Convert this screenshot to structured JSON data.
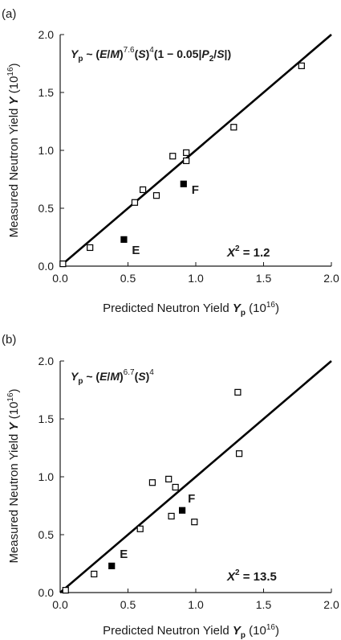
{
  "figure": {
    "colors": {
      "axis": "#1a1a1a",
      "fit_line": "#000000",
      "open_marker": "#ffffff",
      "filled_marker": "#000000"
    }
  },
  "chart_data": [
    {
      "type": "scatter",
      "panel_label": "(a)",
      "formula": {
        "lhs_symbol": "Y",
        "lhs_sub": "p",
        "p1": " ~ (",
        "E": "E",
        "slash1": "/",
        "M": "M",
        "p2": ")",
        "exp1": "7.6",
        "p3": "(",
        "S1": "S",
        "p4": ")",
        "exp2": "4",
        "p5": "(1 − 0.05|",
        "P": "P",
        "P_sub": "2",
        "slash2": "/",
        "S2": "S",
        "p6": "|)"
      },
      "chi_squared": {
        "symbol": "X",
        "exp": "2",
        "text": " = 1.2"
      },
      "xlabel": {
        "main": "Predicted Neutron Yield ",
        "symbol": "Y",
        "sub": "p",
        "unit_pre": " (10",
        "unit_exp": "16",
        "unit_post": ")"
      },
      "ylabel": {
        "main": "Measured Neutron Yield ",
        "symbol": "Y",
        "unit_pre": " (10",
        "unit_exp": "16",
        "unit_post": ")"
      },
      "xlim": [
        0,
        2.0
      ],
      "ylim": [
        0,
        2.0
      ],
      "xticks": [
        "0.0",
        "0.5",
        "1.0",
        "1.5",
        "2.0"
      ],
      "yticks": [
        "0.0",
        "0.5",
        "1.0",
        "1.5",
        "2.0"
      ],
      "grid": false,
      "fit_line": {
        "x": [
          0.0,
          2.0
        ],
        "y": [
          0.0,
          2.0
        ]
      },
      "series": [
        {
          "marker": "open-square",
          "x": [
            0.02,
            0.22,
            0.55,
            0.61,
            0.71,
            0.83,
            0.93,
            0.93,
            1.28,
            1.78
          ],
          "y": [
            0.02,
            0.16,
            0.55,
            0.66,
            0.61,
            0.95,
            0.98,
            0.91,
            1.2,
            1.73
          ]
        },
        {
          "marker": "filled-square",
          "x": [
            0.47,
            0.91
          ],
          "y": [
            0.23,
            0.71
          ],
          "labels": [
            "E",
            "F"
          ]
        }
      ]
    },
    {
      "type": "scatter",
      "panel_label": "(b)",
      "formula": {
        "lhs_symbol": "Y",
        "lhs_sub": "p",
        "p1": " ~ (",
        "E": "E",
        "slash1": "/",
        "M": "M",
        "p2": ")",
        "exp1": "6.7",
        "p3": "(",
        "S1": "S",
        "p4": ")",
        "exp2": "4"
      },
      "chi_squared": {
        "symbol": "X",
        "exp": "2",
        "text": " = 13.5"
      },
      "xlabel": {
        "main": "Predicted Neutron Yield ",
        "symbol": "Y",
        "sub": "p",
        "unit_pre": " (10",
        "unit_exp": "16",
        "unit_post": ")"
      },
      "ylabel": {
        "main": "Measured Neutron Yield ",
        "symbol": "Y",
        "unit_pre": " (10",
        "unit_exp": "16",
        "unit_post": ")"
      },
      "xlim": [
        0,
        2.0
      ],
      "ylim": [
        0,
        2.0
      ],
      "xticks": [
        "0.0",
        "0.5",
        "1.0",
        "1.5",
        "2.0"
      ],
      "yticks": [
        "0.0",
        "0.5",
        "1.0",
        "1.5",
        "2.0"
      ],
      "grid": false,
      "fit_line": {
        "x": [
          0.0,
          2.0
        ],
        "y": [
          0.0,
          2.0
        ]
      },
      "series": [
        {
          "marker": "open-square",
          "x": [
            0.04,
            0.25,
            0.59,
            0.68,
            0.8,
            0.82,
            0.85,
            0.99,
            1.31,
            1.32
          ],
          "y": [
            0.02,
            0.16,
            0.55,
            0.95,
            0.98,
            0.66,
            0.91,
            0.61,
            1.73,
            1.2
          ]
        },
        {
          "marker": "filled-square",
          "x": [
            0.38,
            0.9
          ],
          "y": [
            0.23,
            0.71
          ],
          "labels": [
            "E",
            "F"
          ]
        }
      ]
    }
  ]
}
